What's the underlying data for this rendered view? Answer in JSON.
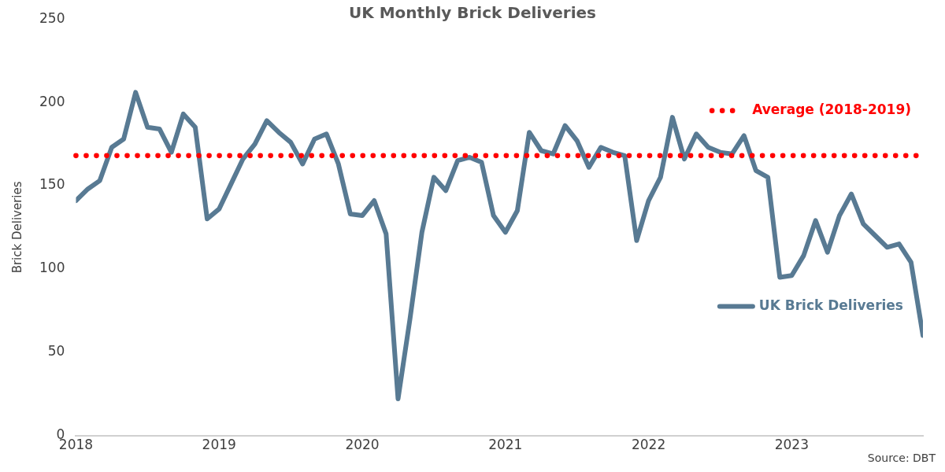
{
  "chart_data": {
    "type": "line",
    "title": "UK Monthly Brick Deliveries",
    "ylabel": "Brick Deliveries",
    "x": [
      "2018-01",
      "2018-02",
      "2018-03",
      "2018-04",
      "2018-05",
      "2018-06",
      "2018-07",
      "2018-08",
      "2018-09",
      "2018-10",
      "2018-11",
      "2018-12",
      "2019-01",
      "2019-02",
      "2019-03",
      "2019-04",
      "2019-05",
      "2019-06",
      "2019-07",
      "2019-08",
      "2019-09",
      "2019-10",
      "2019-11",
      "2019-12",
      "2020-01",
      "2020-02",
      "2020-03",
      "2020-04",
      "2020-05",
      "2020-06",
      "2020-07",
      "2020-08",
      "2020-09",
      "2020-10",
      "2020-11",
      "2020-12",
      "2021-01",
      "2021-02",
      "2021-03",
      "2021-04",
      "2021-05",
      "2021-06",
      "2021-07",
      "2021-08",
      "2021-09",
      "2021-10",
      "2021-11",
      "2021-12",
      "2022-01",
      "2022-02",
      "2022-03",
      "2022-04",
      "2022-05",
      "2022-06",
      "2022-07",
      "2022-08",
      "2022-09",
      "2022-10",
      "2022-11",
      "2022-12",
      "2023-01",
      "2023-02",
      "2023-03",
      "2023-04",
      "2023-05",
      "2023-06",
      "2023-07",
      "2023-08",
      "2023-09",
      "2023-10",
      "2023-11",
      "2023-12"
    ],
    "series": [
      {
        "name": "UK Brick Deliveries",
        "color": "#587a93",
        "values": [
          141,
          148,
          153,
          173,
          178,
          206,
          185,
          184,
          170,
          193,
          185,
          130,
          136,
          151,
          166,
          175,
          189,
          182,
          176,
          163,
          178,
          181,
          163,
          133,
          132,
          141,
          121,
          22,
          70,
          122,
          155,
          147,
          165,
          167,
          164,
          132,
          122,
          135,
          182,
          171,
          169,
          186,
          177,
          161,
          173,
          170,
          168,
          117,
          141,
          155,
          191,
          166,
          181,
          173,
          170,
          169,
          180,
          159,
          155,
          95,
          96,
          108,
          129,
          110,
          132,
          145,
          127,
          120,
          113,
          115,
          104,
          60
        ]
      }
    ],
    "xlim": [
      "2018-01",
      "2023-12"
    ],
    "xticks": [
      "2018",
      "2019",
      "2020",
      "2021",
      "2022",
      "2023"
    ],
    "ylim": [
      0,
      250
    ],
    "yticks": [
      0,
      50,
      100,
      150,
      200,
      250
    ],
    "ref_lines": [
      {
        "axis": "y",
        "value": 168,
        "label": "Average (2018-2019)",
        "color": "#ff0000",
        "line_style": "dotted"
      }
    ],
    "annotations": [
      "Source: DBT"
    ],
    "grid": false,
    "legend": "right",
    "marker": "none",
    "line_style": "solid"
  }
}
